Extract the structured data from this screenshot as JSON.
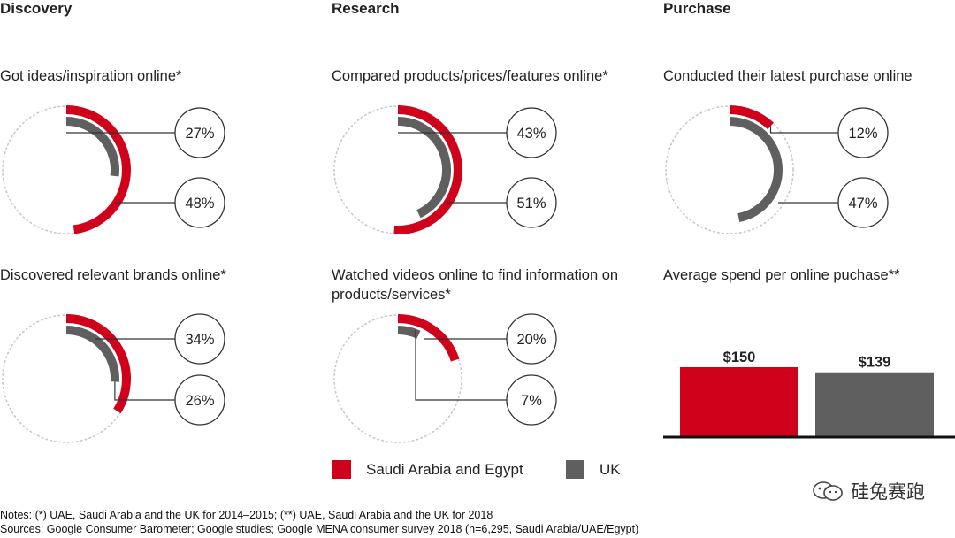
{
  "columns": {
    "discovery": "Discovery",
    "research": "Research",
    "purchase": "Purchase"
  },
  "colors": {
    "saudi": "#d0021b",
    "uk": "#5f5f5f",
    "dotted": "#c8c8c8",
    "leader": "#333333"
  },
  "chart_data": [
    {
      "type": "radial-bar",
      "title": "Got ideas/inspiration online*",
      "series": [
        {
          "name": "Saudi Arabia and Egypt",
          "value": 48
        },
        {
          "name": "UK",
          "value": 27
        }
      ]
    },
    {
      "type": "radial-bar",
      "title": "Compared products/prices/features online*",
      "series": [
        {
          "name": "Saudi Arabia and Egypt",
          "value": 51
        },
        {
          "name": "UK",
          "value": 43
        }
      ]
    },
    {
      "type": "radial-bar",
      "title": "Conducted their latest purchase online",
      "series": [
        {
          "name": "Saudi Arabia and Egypt",
          "value": 12
        },
        {
          "name": "UK",
          "value": 47
        }
      ]
    },
    {
      "type": "radial-bar",
      "title": "Discovered relevant brands online*",
      "series": [
        {
          "name": "Saudi Arabia and Egypt",
          "value": 34
        },
        {
          "name": "UK",
          "value": 26
        }
      ]
    },
    {
      "type": "radial-bar",
      "title": "Watched videos online to find information on products/services*",
      "series": [
        {
          "name": "Saudi Arabia and Egypt",
          "value": 20
        },
        {
          "name": "UK",
          "value": 7
        }
      ]
    },
    {
      "type": "bar",
      "title": "Average spend per online puchase**",
      "categories": [
        "Saudi Arabia and Egypt",
        "UK"
      ],
      "values": [
        150,
        139
      ],
      "labels": [
        "$150",
        "$139"
      ],
      "ylim": [
        0,
        160
      ]
    }
  ],
  "legend": [
    {
      "label": "Saudi Arabia and Egypt",
      "color": "#d0021b"
    },
    {
      "label": "UK",
      "color": "#5f5f5f"
    }
  ],
  "notes": {
    "line1": "Notes: (*) UAE, Saudi Arabia and the UK for 2014–2015; (**) UAE, Saudi Arabia and the UK for 2018",
    "line2": "Sources: Google Consumer Barometer; Google studies; Google MENA consumer survey 2018 (n=6,295, Saudi Arabia/UAE/Egypt)"
  },
  "watermark": "硅兔赛跑"
}
